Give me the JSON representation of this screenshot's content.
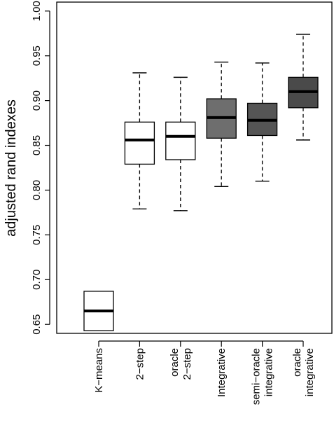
{
  "chart_data": {
    "type": "boxplot",
    "title": "",
    "xlabel": "",
    "ylabel": "adjusted rand indexes",
    "ylim": [
      0.64,
      1.01
    ],
    "yticks": [
      "0.65",
      "0.70",
      "0.75",
      "0.80",
      "0.85",
      "0.90",
      "0.95",
      "1.00"
    ],
    "grid": false,
    "categories": [
      [
        "K−means"
      ],
      [
        "2−step"
      ],
      [
        "oracle",
        "2−step"
      ],
      [
        "Integrative"
      ],
      [
        "semi−oracle",
        "integrative"
      ],
      [
        "oracle",
        "integrative"
      ]
    ],
    "boxes": [
      {
        "whisker_low": null,
        "q1": 0.643,
        "median": 0.665,
        "q3": 0.687,
        "whisker_high": null,
        "fill": "#ffffff"
      },
      {
        "whisker_low": 0.779,
        "q1": 0.829,
        "median": 0.856,
        "q3": 0.876,
        "whisker_high": 0.931,
        "fill": "#ffffff"
      },
      {
        "whisker_low": 0.777,
        "q1": 0.834,
        "median": 0.86,
        "q3": 0.876,
        "whisker_high": 0.926,
        "fill": "#ffffff"
      },
      {
        "whisker_low": 0.804,
        "q1": 0.858,
        "median": 0.881,
        "q3": 0.902,
        "whisker_high": 0.943,
        "fill": "#6e6e6e"
      },
      {
        "whisker_low": 0.81,
        "q1": 0.861,
        "median": 0.878,
        "q3": 0.897,
        "whisker_high": 0.942,
        "fill": "#555555"
      },
      {
        "whisker_low": 0.856,
        "q1": 0.892,
        "median": 0.91,
        "q3": 0.926,
        "whisker_high": 0.974,
        "fill": "#4a4a4a"
      }
    ]
  }
}
